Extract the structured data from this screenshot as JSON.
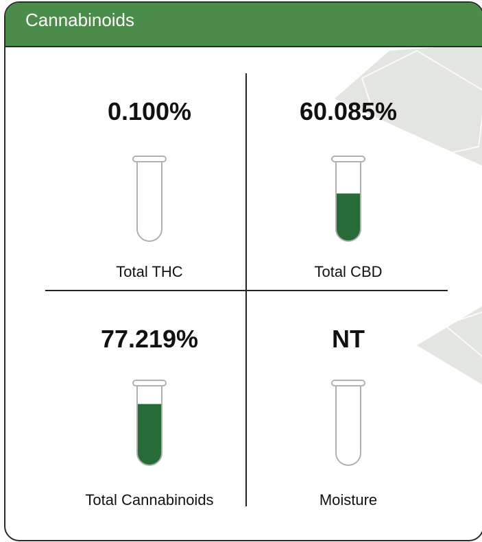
{
  "header": {
    "title": "Cannabinoids"
  },
  "colors": {
    "header_bg": "#4c8c4a",
    "fill": "#266b38",
    "tube_outline": "#b0b0b0"
  },
  "metrics": [
    {
      "value": "0.100%",
      "label": "Total THC",
      "fill_level": 0.0
    },
    {
      "value": "60.085%",
      "label": "Total CBD",
      "fill_level": 0.6
    },
    {
      "value": "77.219%",
      "label": "Total Cannabinoids",
      "fill_level": 0.77
    },
    {
      "value": "NT",
      "label": "Moisture",
      "fill_level": 0.0
    }
  ]
}
